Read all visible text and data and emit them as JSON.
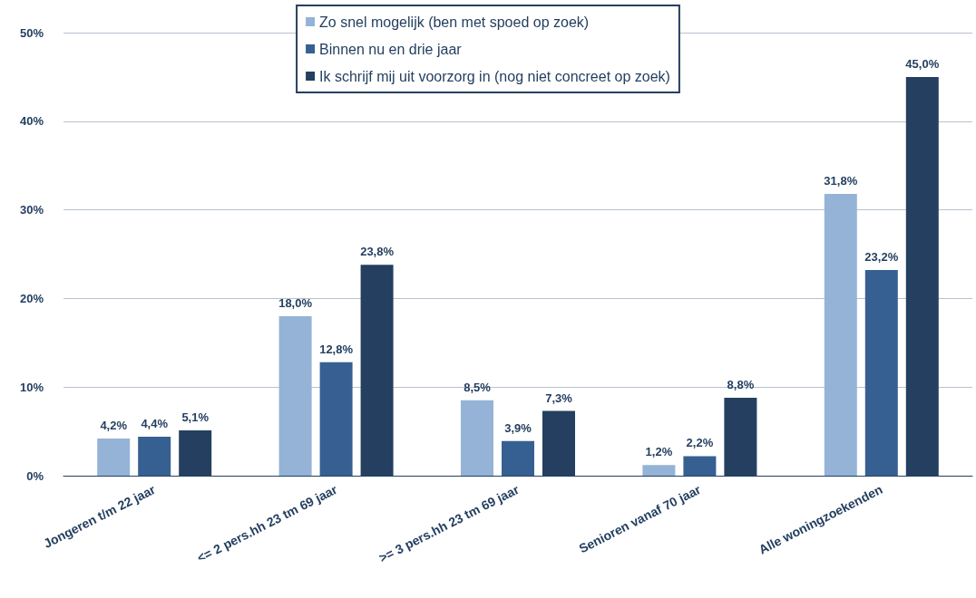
{
  "chart_data": {
    "type": "bar",
    "categories": [
      "Jongeren t/m 22 jaar",
      "<= 2 pers.hh 23 tm 69 jaar",
      ">= 3 pers.hh 23 tm 69 jaar",
      "Senioren vanaf 70 jaar",
      "Alle woningzoekenden"
    ],
    "series": [
      {
        "name": "Zo snel mogelijk (ben met spoed op zoek)",
        "color": "#95b3d7",
        "values": [
          4.2,
          18.0,
          8.5,
          1.2,
          31.8
        ],
        "value_labels": [
          "4,2%",
          "18,0%",
          "8,5%",
          "1,2%",
          "31,8%"
        ]
      },
      {
        "name": "Binnen nu en drie jaar",
        "color": "#366092",
        "values": [
          4.4,
          12.8,
          3.9,
          2.2,
          23.2
        ],
        "value_labels": [
          "4,4%",
          "12,8%",
          "3,9%",
          "2,2%",
          "23,2%"
        ]
      },
      {
        "name": "Ik schrijf mij uit voorzorg in (nog niet concreet op zoek)",
        "color": "#243f60",
        "values": [
          5.1,
          23.8,
          7.3,
          8.8,
          45.0
        ],
        "value_labels": [
          "5,1%",
          "23,8%",
          "7,3%",
          "8,8%",
          "45,0%"
        ]
      }
    ],
    "ylim": [
      0,
      50
    ],
    "yticks": [
      {
        "value": 0,
        "label": "0%"
      },
      {
        "value": 10,
        "label": "10%"
      },
      {
        "value": 20,
        "label": "20%"
      },
      {
        "value": 30,
        "label": "30%"
      },
      {
        "value": 40,
        "label": "40%"
      },
      {
        "value": 50,
        "label": "50%"
      }
    ],
    "grid": "y",
    "legend": "top"
  }
}
